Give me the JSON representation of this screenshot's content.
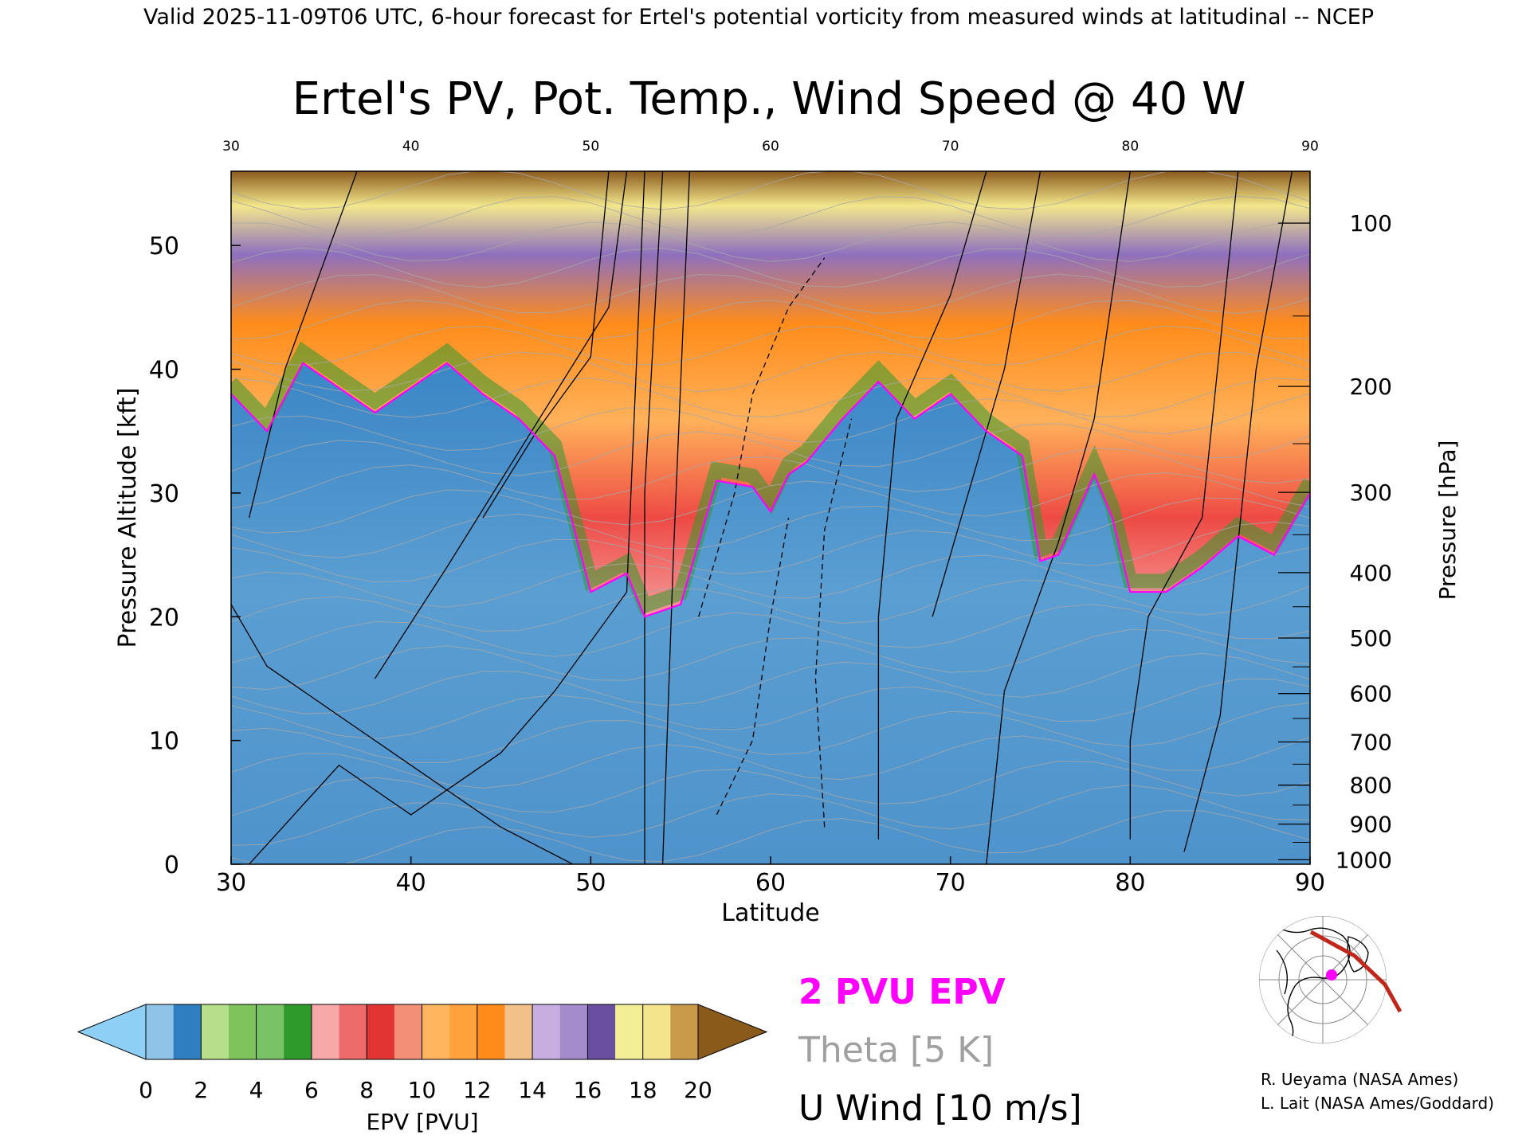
{
  "header": {
    "valid_line": "Valid 2025-11-09T06 UTC, 6-hour forecast for Ertel's potential vorticity from measured winds at latitudinal -- NCEP"
  },
  "chart_data": {
    "type": "heatmap",
    "title": "Ertel's PV, Pot. Temp., Wind Speed @ 40 W",
    "xlabel": "Latitude",
    "ylabel_left": "Pressure Altitude [kft]",
    "ylabel_right": "Pressure [hPa]",
    "xlim": [
      30,
      90
    ],
    "ylim": [
      0,
      56
    ],
    "x_ticks": [
      "30",
      "40",
      "50",
      "60",
      "70",
      "80",
      "90"
    ],
    "x_ticks_top": [
      "30",
      "40",
      "50",
      "60",
      "70",
      "80",
      "90"
    ],
    "y_ticks": [
      "0",
      "10",
      "20",
      "30",
      "40",
      "50"
    ],
    "pressure_ticks": [
      {
        "label": "100",
        "hpa": 100
      },
      {
        "label": "200",
        "hpa": 200
      },
      {
        "label": "300",
        "hpa": 300
      },
      {
        "label": "400",
        "hpa": 400
      },
      {
        "label": "500",
        "hpa": 500
      },
      {
        "label": "600",
        "hpa": 600
      },
      {
        "label": "700",
        "hpa": 700
      },
      {
        "label": "800",
        "hpa": 800
      },
      {
        "label": "900",
        "hpa": 900
      },
      {
        "label": "1000",
        "hpa": 1000
      }
    ],
    "tropopause_2pvu_kft": [
      [
        30,
        38
      ],
      [
        32,
        35
      ],
      [
        34,
        40.5
      ],
      [
        36,
        38.5
      ],
      [
        38,
        36.5
      ],
      [
        40,
        38.5
      ],
      [
        42,
        40.5
      ],
      [
        44,
        38
      ],
      [
        46,
        36
      ],
      [
        48,
        33
      ],
      [
        50,
        22
      ],
      [
        52,
        23.5
      ],
      [
        53,
        20
      ],
      [
        55,
        21
      ],
      [
        57,
        31
      ],
      [
        59,
        30.5
      ],
      [
        60,
        28.5
      ],
      [
        61,
        31.5
      ],
      [
        62,
        32.5
      ],
      [
        64,
        36
      ],
      [
        66,
        39
      ],
      [
        68,
        36
      ],
      [
        70,
        38
      ],
      [
        72,
        35
      ],
      [
        74,
        33
      ],
      [
        75,
        24.5
      ],
      [
        76,
        25
      ],
      [
        78,
        31.5
      ],
      [
        79,
        28
      ],
      [
        80,
        22
      ],
      [
        82,
        22
      ],
      [
        84,
        24
      ],
      [
        86,
        26.5
      ],
      [
        88,
        25
      ],
      [
        90,
        30
      ]
    ],
    "colorbar": {
      "label": "EPV [PVU]",
      "ticks": [
        "0",
        "2",
        "4",
        "6",
        "8",
        "10",
        "12",
        "14",
        "16",
        "18",
        "20"
      ],
      "bin_width": 1,
      "colors": [
        "#8fc4e8",
        "#2f7ec0",
        "#b5df8a",
        "#7fc35d",
        "#79c265",
        "#2e9a2c",
        "#f7a8a8",
        "#ee6b6b",
        "#e23432",
        "#f28f76",
        "#ffb55e",
        "#ffa23c",
        "#ff8c1a",
        "#f2c18a",
        "#c8aee0",
        "#a38bcc",
        "#6a4ea0",
        "#f2ee96",
        "#f4e48c",
        "#c89a4a"
      ],
      "under_color": "#8ecff5",
      "over_color": "#8a5a1a"
    },
    "legend": [
      {
        "label": "2 PVU EPV",
        "color": "#ff00ff"
      },
      {
        "label": "Theta [5 K]",
        "color": "#a0a0a0"
      },
      {
        "label": "U Wind [10 m/s]",
        "color": "#000000"
      }
    ]
  },
  "credits": [
    "R. Ueyama (NASA Ames)",
    "L. Lait (NASA Ames/Goddard)"
  ]
}
